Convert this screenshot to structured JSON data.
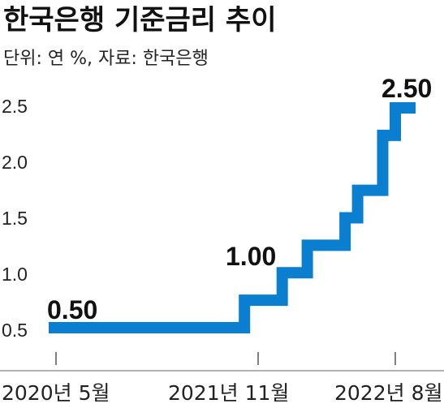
{
  "title": "한국은행 기준금리 추이",
  "subtitle": "단위: 연 %, 자료: 한국은행",
  "colors": {
    "line": "#0a7fd0",
    "axis": "#444444",
    "text": "#222222"
  },
  "chart_data": {
    "type": "line",
    "step": true,
    "series": [
      {
        "points": [
          {
            "x": "2020-05",
            "y": 0.5
          },
          {
            "x": "2021-08",
            "y": 0.75
          },
          {
            "x": "2021-11",
            "y": 1.0
          },
          {
            "x": "2022-01",
            "y": 1.25
          },
          {
            "x": "2022-04",
            "y": 1.5
          },
          {
            "x": "2022-05",
            "y": 1.75
          },
          {
            "x": "2022-07",
            "y": 2.25
          },
          {
            "x": "2022-08",
            "y": 2.5
          }
        ]
      }
    ],
    "yticks": [
      "2.5",
      "2.0",
      "1.5",
      "1.0",
      "0.5"
    ],
    "xticks": [
      "2020년 5월",
      "2021년 11월",
      "2022년 8월"
    ],
    "data_labels": [
      "0.50",
      "1.00",
      "2.50"
    ],
    "ylim": [
      0.5,
      2.5
    ],
    "grid": false,
    "legend": "none"
  }
}
